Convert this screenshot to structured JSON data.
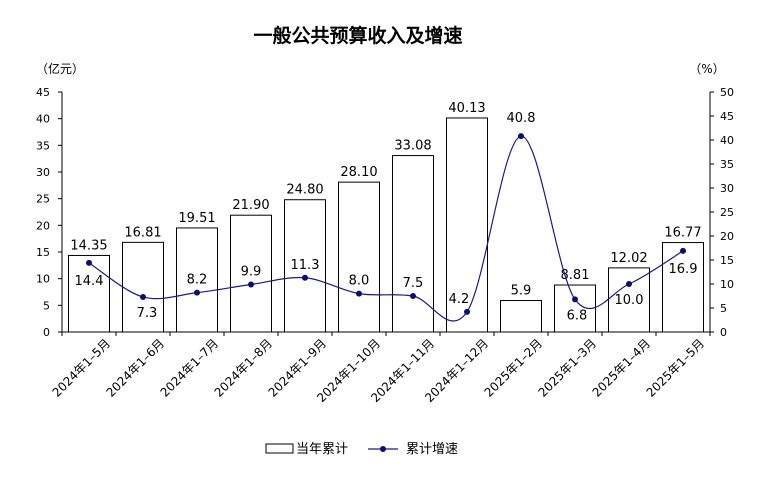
{
  "chart_data": {
    "type": "bar",
    "title": "一般公共预算收入及增速",
    "left_unit": "（亿元）",
    "right_unit": "（%）",
    "categories": [
      "2024年1–5月",
      "2024年1–6月",
      "2024年1–7月",
      "2024年1–8月",
      "2024年1–9月",
      "2024年1–10月",
      "2024年1–11月",
      "2024年1–12月",
      "2025年1–2月",
      "2025年1–3月",
      "2025年1–4月",
      "2025年1–5月"
    ],
    "bar_labels": [
      "14.35",
      "16.81",
      "19.51",
      "21.90",
      "24.80",
      "28.10",
      "33.08",
      "40.13",
      "5.9",
      "8.81",
      "12.02",
      "16.77"
    ],
    "line_labels": [
      "14.4",
      "7.3",
      "8.2",
      "9.9",
      "11.3",
      "8.0",
      "7.5",
      "4.2",
      "40.8",
      "6.8",
      "10.0",
      "16.9"
    ],
    "series": [
      {
        "name": "当年累计",
        "type": "bar",
        "axis": "left",
        "values": [
          14.35,
          16.81,
          19.51,
          21.9,
          24.8,
          28.1,
          33.08,
          40.13,
          5.9,
          8.81,
          12.02,
          16.77
        ]
      },
      {
        "name": "累计增速",
        "type": "line",
        "axis": "right",
        "values": [
          14.4,
          7.3,
          8.2,
          9.9,
          11.3,
          8.0,
          7.5,
          4.2,
          40.8,
          6.8,
          10.0,
          16.9
        ]
      }
    ],
    "y_left": {
      "min": 0,
      "max": 45,
      "step": 5
    },
    "y_right": {
      "min": 0,
      "max": 50,
      "step": 5
    },
    "grid": false,
    "legend_position": "bottom",
    "colors": {
      "bar_fill": "#ffffff",
      "bar_stroke": "#000000",
      "line": "#1a1a8c",
      "marker": "#0d0d70"
    }
  }
}
